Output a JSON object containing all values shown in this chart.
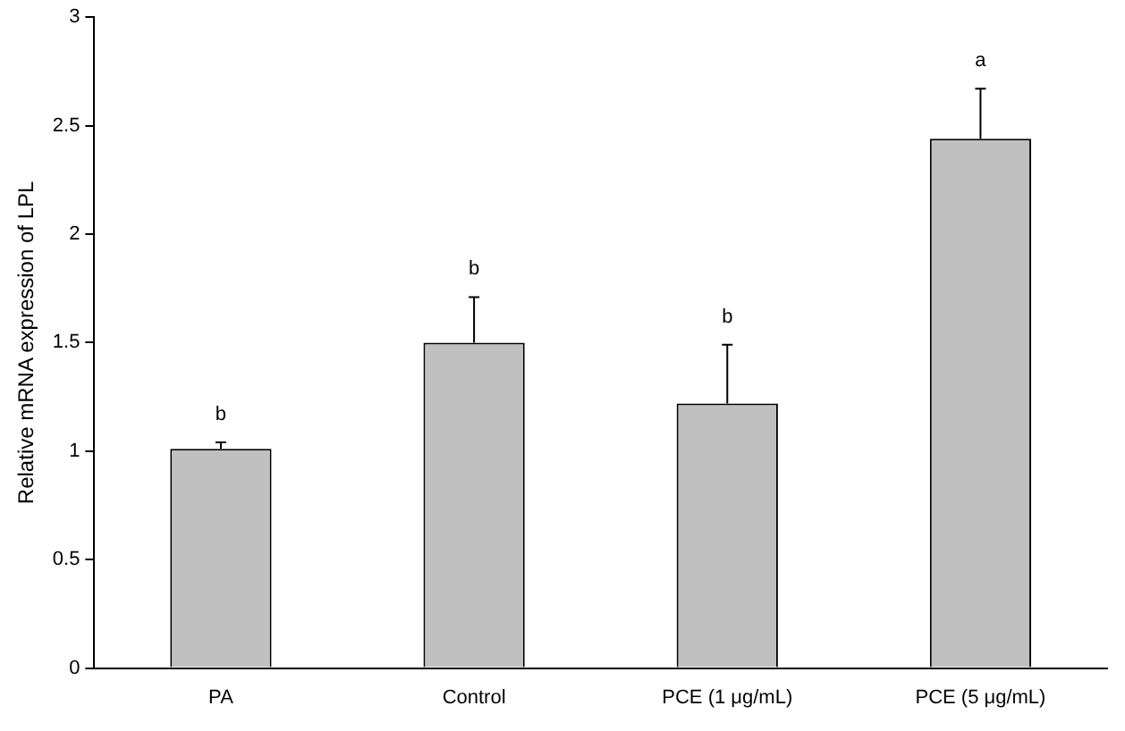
{
  "chart_data": {
    "type": "bar",
    "ylabel": "Relative mRNA expression of LPL",
    "categories": [
      "PA",
      "Control",
      "PCE (1 μg/mL)",
      "PCE (5 μg/mL)"
    ],
    "values": [
      1.01,
      1.5,
      1.22,
      2.44
    ],
    "errors": [
      [
        1.01,
        1.04
      ],
      [
        1.5,
        1.71
      ],
      [
        1.22,
        1.49
      ],
      [
        2.44,
        2.67
      ]
    ],
    "color": "#c0c0c0",
    "ylim": [
      0,
      3
    ],
    "yticks": [
      0,
      0.5,
      1,
      1.5,
      2,
      2.5,
      3
    ],
    "grid": false,
    "legend": false,
    "annotations": [
      {
        "text": "b",
        "x": "PA",
        "y": 1.04
      },
      {
        "text": "b",
        "x": "Control",
        "y": 1.71
      },
      {
        "text": "b",
        "x": "PCE (1 μg/mL)",
        "y": 1.49
      },
      {
        "text": "a",
        "x": "PCE (5 μg/mL)",
        "y": 2.67
      }
    ]
  }
}
